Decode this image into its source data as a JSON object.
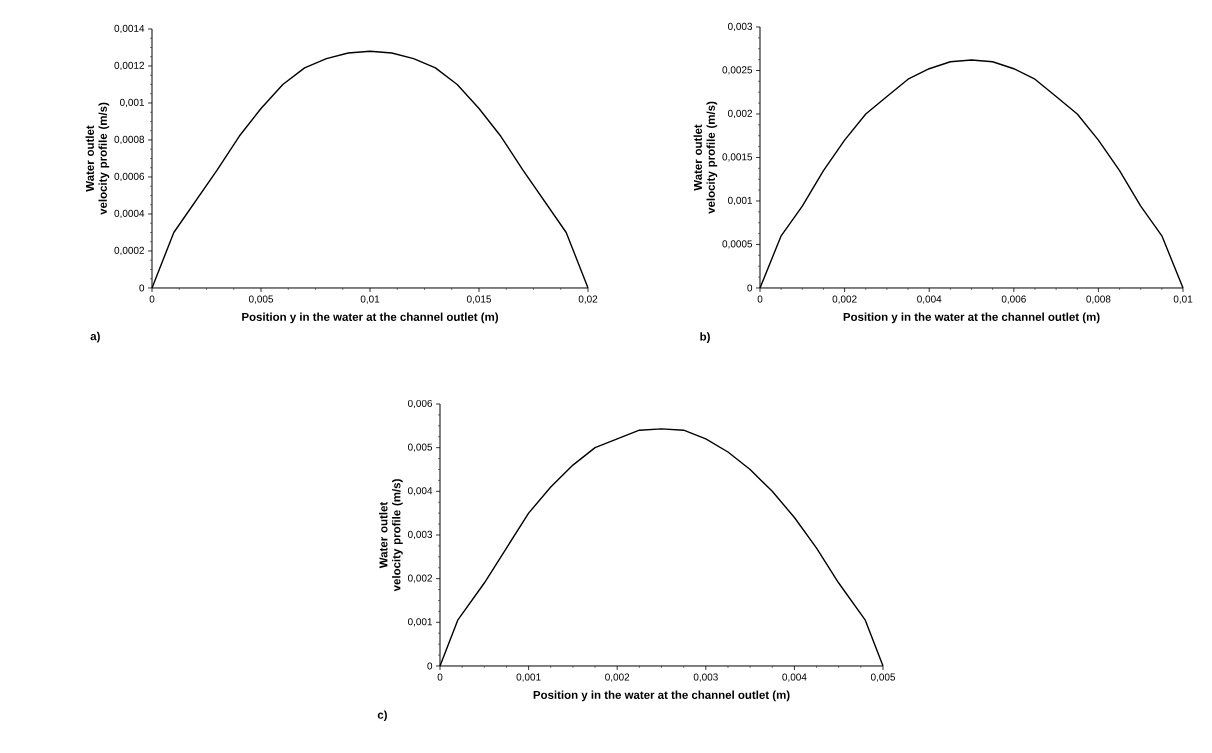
{
  "chart_data": [
    {
      "type": "line",
      "xlabel": "Position y in the water at the channel outlet (m)",
      "ylabel": "Water outlet velocity profile (m/s)",
      "annotations": [
        "a)"
      ],
      "color": "#000000",
      "marker": "none",
      "line_style": "solid",
      "grid": false,
      "x": [
        0,
        0.001,
        0.002,
        0.003,
        0.004,
        0.005,
        0.006,
        0.007,
        0.008,
        0.009,
        0.01,
        0.011,
        0.012,
        0.013,
        0.014,
        0.015,
        0.016,
        0.017,
        0.018,
        0.019,
        0.02
      ],
      "values": [
        0,
        0.0003,
        0.00047,
        0.00064,
        0.00082,
        0.00097,
        0.0011,
        0.00119,
        0.00124,
        0.00127,
        0.00128,
        0.00127,
        0.00124,
        0.00119,
        0.0011,
        0.00097,
        0.00082,
        0.00064,
        0.00047,
        0.0003,
        0
      ],
      "xlim": [
        0,
        0.02
      ],
      "xticks": [
        {
          "value": 0,
          "label": "0"
        },
        {
          "value": 0.005,
          "label": "0,005"
        },
        {
          "value": 0.01,
          "label": "0,01"
        },
        {
          "value": 0.015,
          "label": "0,015"
        },
        {
          "value": 0.02,
          "label": "0,02"
        }
      ],
      "ylim": [
        0,
        0.0014
      ],
      "yticks": [
        {
          "value": 0,
          "label": "0"
        },
        {
          "value": 0.0002,
          "label": "0,0002"
        },
        {
          "value": 0.0004,
          "label": "0,0004"
        },
        {
          "value": 0.0006,
          "label": "0,0006"
        },
        {
          "value": 0.0008,
          "label": "0,0008"
        },
        {
          "value": 0.001,
          "label": "0,001"
        },
        {
          "value": 0.0012,
          "label": "0,0012"
        },
        {
          "value": 0.0014,
          "label": "0,0014"
        }
      ]
    },
    {
      "type": "line",
      "xlabel": "Position y in the water at the channel outlet (m)",
      "ylabel": "Water outlet velocity profile (m/s)",
      "annotations": [
        "b)"
      ],
      "color": "#000000",
      "marker": "none",
      "line_style": "solid",
      "grid": false,
      "x": [
        0,
        0.0005,
        0.001,
        0.0015,
        0.002,
        0.0025,
        0.003,
        0.0035,
        0.004,
        0.0045,
        0.005,
        0.0055,
        0.006,
        0.0065,
        0.007,
        0.0075,
        0.008,
        0.0085,
        0.009,
        0.0095,
        0.01
      ],
      "values": [
        0,
        0.0006,
        0.00094,
        0.00135,
        0.0017,
        0.002,
        0.0022,
        0.0024,
        0.00252,
        0.0026,
        0.00262,
        0.0026,
        0.00252,
        0.0024,
        0.0022,
        0.002,
        0.0017,
        0.00135,
        0.00094,
        0.0006,
        0
      ],
      "xlim": [
        0,
        0.01
      ],
      "xticks": [
        {
          "value": 0,
          "label": "0"
        },
        {
          "value": 0.002,
          "label": "0,002"
        },
        {
          "value": 0.004,
          "label": "0,004"
        },
        {
          "value": 0.006,
          "label": "0,006"
        },
        {
          "value": 0.008,
          "label": "0,008"
        },
        {
          "value": 0.01,
          "label": "0,01"
        }
      ],
      "ylim": [
        0,
        0.003
      ],
      "yticks": [
        {
          "value": 0,
          "label": "0"
        },
        {
          "value": 0.0005,
          "label": "0,0005"
        },
        {
          "value": 0.001,
          "label": "0,001"
        },
        {
          "value": 0.0015,
          "label": "0,0015"
        },
        {
          "value": 0.002,
          "label": "0,002"
        },
        {
          "value": 0.0025,
          "label": "0,0025"
        },
        {
          "value": 0.003,
          "label": "0,003"
        }
      ]
    },
    {
      "type": "line",
      "xlabel": "Position y in the water at the channel outlet (m)",
      "ylabel": "Water outlet velocity profile (m/s)",
      "annotations": [
        "c)"
      ],
      "color": "#000000",
      "marker": "none",
      "line_style": "solid",
      "grid": false,
      "x": [
        0,
        0.0002,
        0.0005,
        0.00075,
        0.001,
        0.00125,
        0.0015,
        0.00175,
        0.002,
        0.00225,
        0.0025,
        0.00275,
        0.003,
        0.00325,
        0.0035,
        0.00375,
        0.004,
        0.00425,
        0.0045,
        0.0048,
        0.005
      ],
      "values": [
        0,
        0.00105,
        0.0019,
        0.0027,
        0.0035,
        0.0041,
        0.0046,
        0.005,
        0.0052,
        0.0054,
        0.00543,
        0.0054,
        0.0052,
        0.0049,
        0.0045,
        0.004,
        0.0034,
        0.0027,
        0.0019,
        0.00105,
        0
      ],
      "xlim": [
        0,
        0.005
      ],
      "xticks": [
        {
          "value": 0,
          "label": "0"
        },
        {
          "value": 0.001,
          "label": "0,001"
        },
        {
          "value": 0.002,
          "label": "0,002"
        },
        {
          "value": 0.003,
          "label": "0,003"
        },
        {
          "value": 0.004,
          "label": "0,004"
        },
        {
          "value": 0.005,
          "label": "0,005"
        }
      ],
      "ylim": [
        0,
        0.006
      ],
      "yticks": [
        {
          "value": 0,
          "label": "0"
        },
        {
          "value": 0.001,
          "label": "0,001"
        },
        {
          "value": 0.002,
          "label": "0,002"
        },
        {
          "value": 0.003,
          "label": "0,003"
        },
        {
          "value": 0.004,
          "label": "0,004"
        },
        {
          "value": 0.005,
          "label": "0,005"
        },
        {
          "value": 0.006,
          "label": "0,006"
        }
      ]
    }
  ]
}
